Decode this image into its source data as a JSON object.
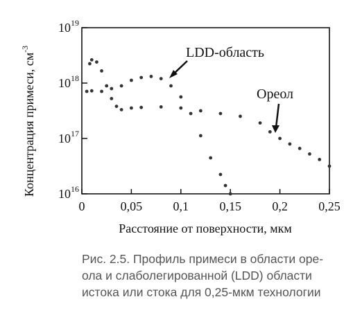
{
  "chart_data": {
    "type": "scatter",
    "ylabel": "Концентрация примеси, см",
    "ylabel_sup": "-3",
    "xlabel": "Расстояние от поверхности, мкм",
    "x_ticks": [
      "0",
      "0,05",
      "0,1",
      "0,15",
      "0,2",
      "0,25"
    ],
    "y_ticks": [
      {
        "base": "10",
        "exp": "16"
      },
      {
        "base": "10",
        "exp": "17"
      },
      {
        "base": "10",
        "exp": "18"
      },
      {
        "base": "10",
        "exp": "19"
      }
    ],
    "xlim": [
      0,
      0.25
    ],
    "ylim_log10": [
      16,
      19
    ],
    "y_scale": "log",
    "grid": false,
    "annotations": [
      "LDD-область",
      "Ореол"
    ],
    "series": [
      {
        "name": "LDD-область",
        "x": [
          0.005,
          0.01,
          0.02,
          0.03,
          0.04,
          0.05,
          0.06,
          0.07,
          0.08,
          0.09,
          0.1,
          0.11,
          0.12,
          0.13,
          0.14,
          0.145,
          0.15
        ],
        "y_log10": [
          17.85,
          17.86,
          17.85,
          17.9,
          17.95,
          18.05,
          18.1,
          18.12,
          18.08,
          17.95,
          17.75,
          17.45,
          17.05,
          16.65,
          16.35,
          16.15,
          16.0
        ]
      },
      {
        "name": "Ореол",
        "x": [
          0.008,
          0.01,
          0.015,
          0.02,
          0.025,
          0.03,
          0.035,
          0.04,
          0.05,
          0.06,
          0.08,
          0.1,
          0.12,
          0.14,
          0.16,
          0.18,
          0.19,
          0.2,
          0.21,
          0.22,
          0.23,
          0.24,
          0.25
        ],
        "y_log10": [
          18.35,
          18.42,
          18.38,
          18.22,
          17.95,
          17.72,
          17.58,
          17.52,
          17.55,
          17.56,
          17.57,
          17.55,
          17.5,
          17.45,
          17.4,
          17.28,
          17.12,
          17.0,
          16.9,
          16.82,
          16.72,
          16.62,
          16.5
        ]
      }
    ]
  },
  "caption": {
    "lines": [
      "Рис. 2.5. Профиль примеси в области оре-",
      "ола и слаболегированной (LDD) области",
      "истока или стока для 0,25-мкм технологии"
    ]
  }
}
